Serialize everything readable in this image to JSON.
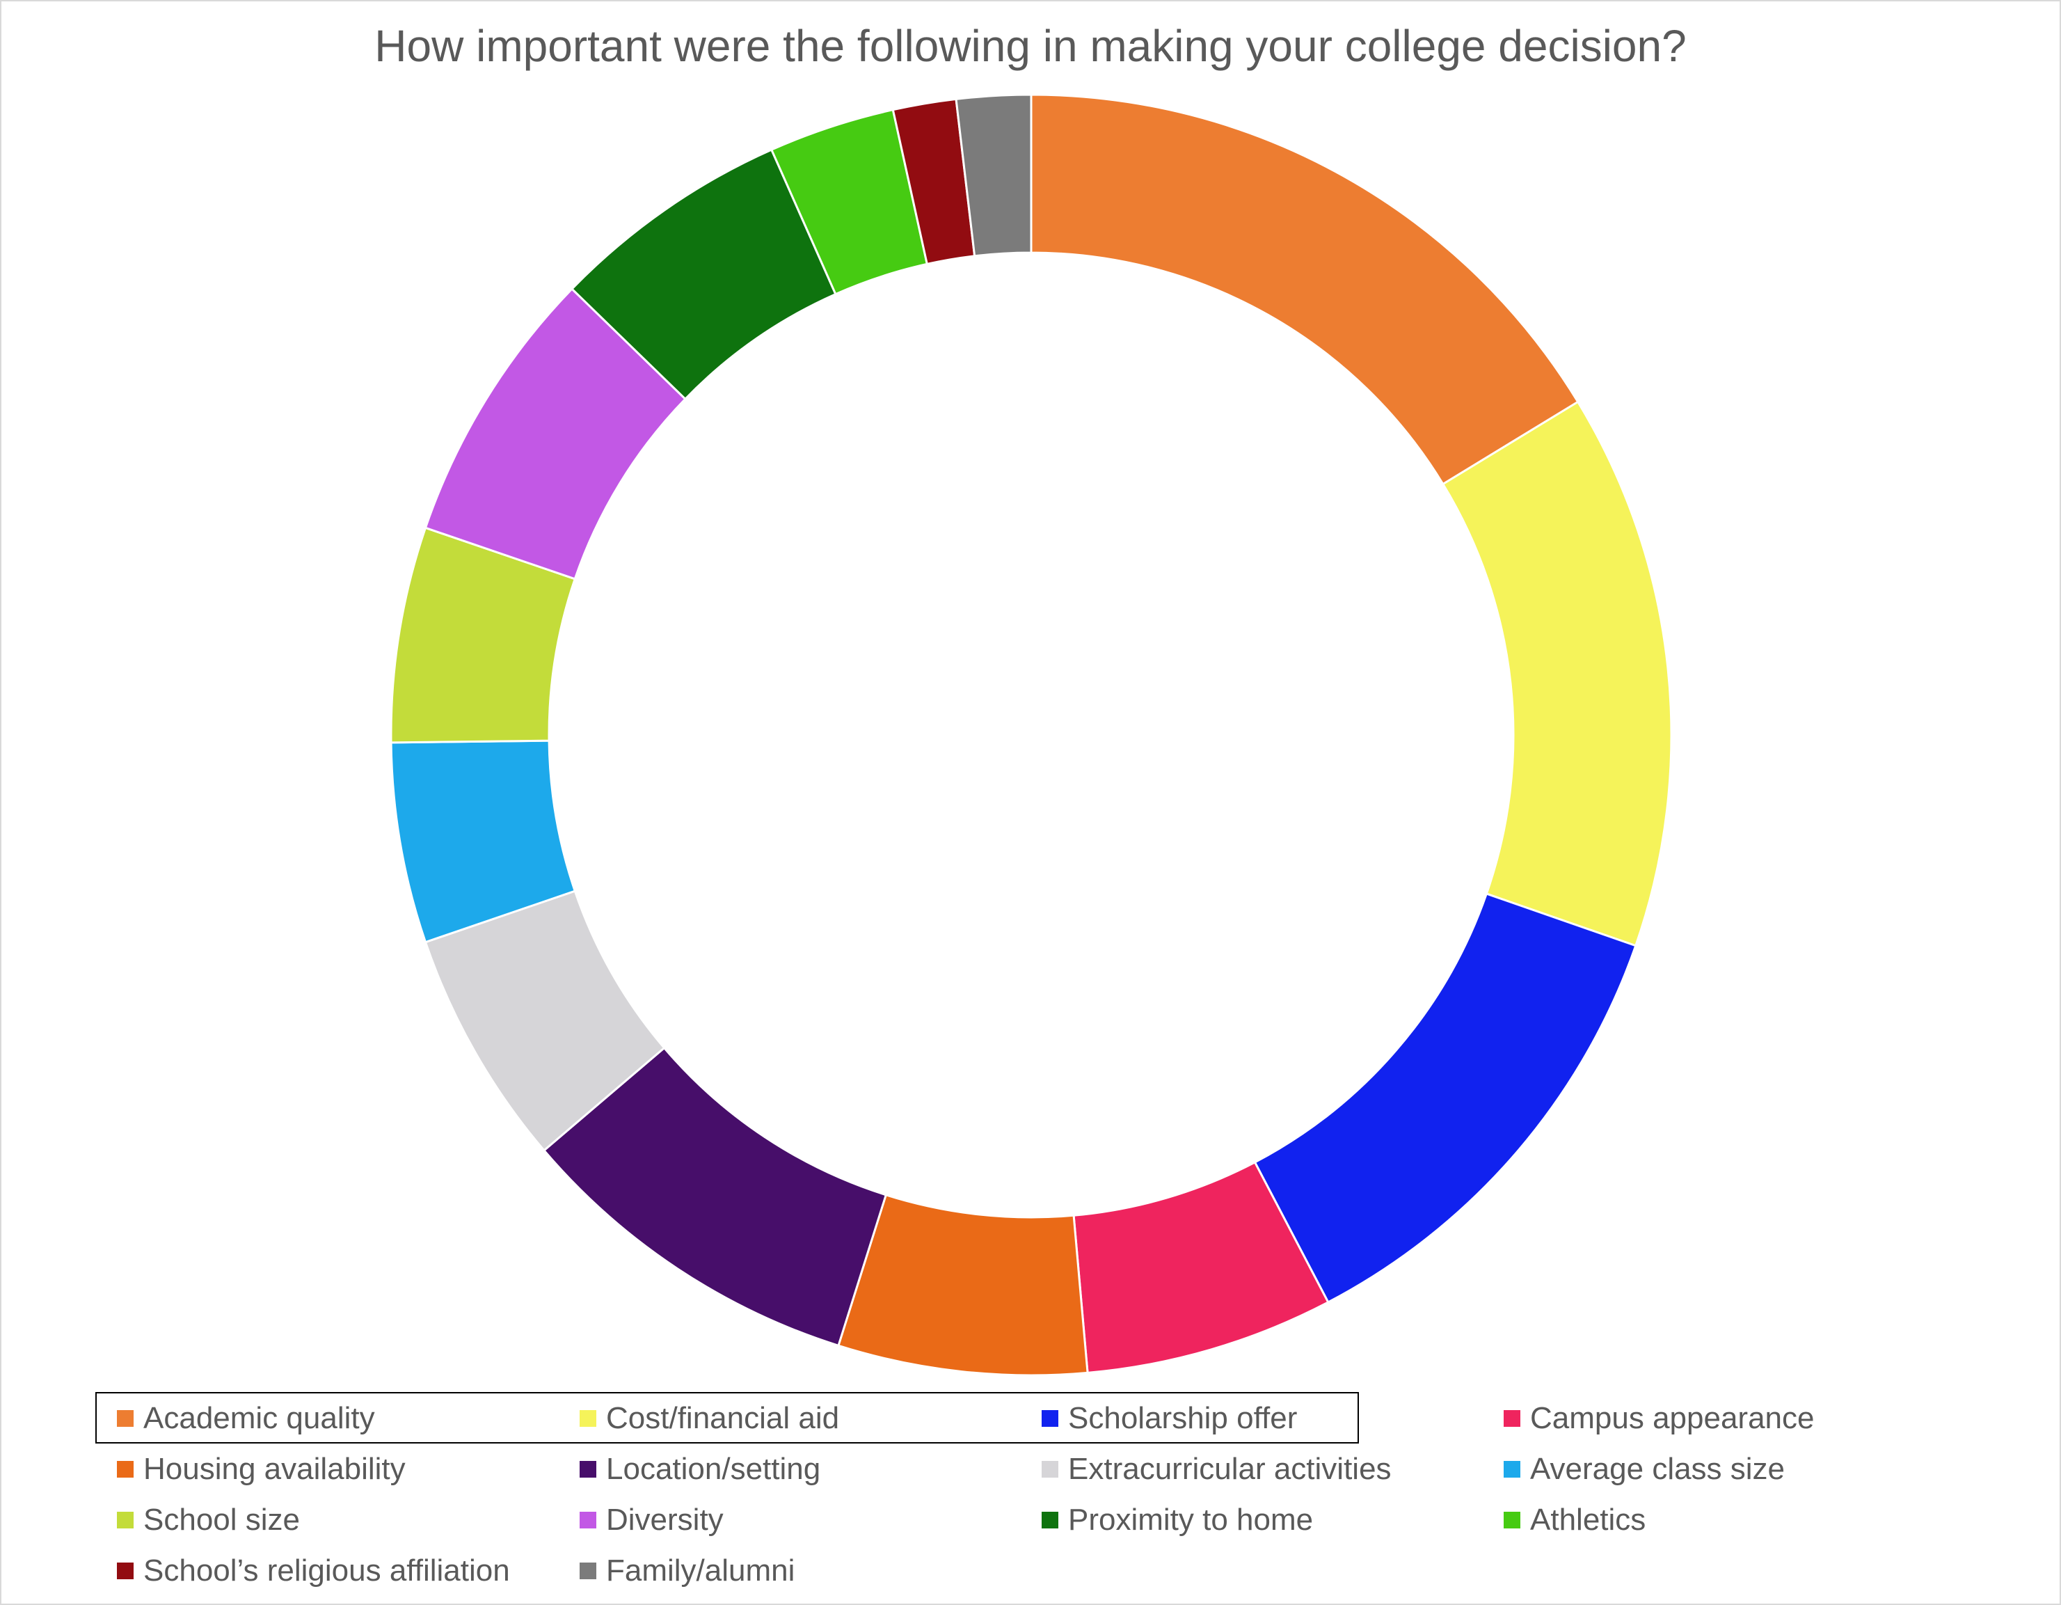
{
  "chart_data": {
    "type": "pie",
    "title": "How important were the following in making your college decision?",
    "categories": [
      "Academic quality",
      "Cost/financial aid",
      "Scholarship offer",
      "Campus appearance",
      "Housing availability",
      "Location/setting",
      "Extracurricular activities",
      "Average class size",
      "School size",
      "Diversity",
      "Proximity to home",
      "Athletics",
      "School’s religious affiliation",
      "Family/alumni"
    ],
    "values": [
      17.4,
      15.0,
      12.8,
      6.7,
      6.7,
      9.5,
      6.4,
      5.4,
      5.8,
      7.5,
      6.5,
      3.4,
      1.7,
      2.0
    ],
    "colors": [
      "#ED7D31",
      "#F5F35A",
      "#1122EF",
      "#EF245E",
      "#EA6A17",
      "#470E6A",
      "#D6D5D8",
      "#1DA9EB",
      "#C3DC3A",
      "#C258E5",
      "#0E730E",
      "#46CB12",
      "#920C11",
      "#7B7B7B"
    ],
    "legend": "bottom",
    "donut": true
  }
}
